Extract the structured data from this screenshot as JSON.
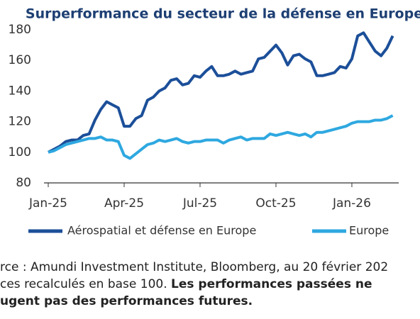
{
  "chart_data": {
    "type": "line",
    "title": "Surperformance du secteur de la défense en Europe",
    "categories": [
      "Jan-25",
      null,
      null,
      null,
      null,
      null,
      null,
      null,
      null,
      null,
      null,
      null,
      null,
      "Apr-25",
      null,
      null,
      null,
      null,
      null,
      null,
      null,
      null,
      null,
      null,
      null,
      null,
      "Jul-25",
      null,
      null,
      null,
      null,
      null,
      null,
      null,
      null,
      null,
      null,
      null,
      null,
      "Oct-25",
      null,
      null,
      null,
      null,
      null,
      null,
      null,
      null,
      null,
      null,
      null,
      null,
      "Jan-26",
      null,
      null,
      null,
      null,
      null,
      null,
      null
    ],
    "series": [
      {
        "name": "Aérospatial et défense en Europe",
        "color": "#1c4f99",
        "values": [
          100,
          102,
          104,
          107,
          108,
          108,
          111,
          112,
          121,
          128,
          133,
          131,
          129,
          117,
          117,
          122,
          124,
          134,
          136,
          140,
          142,
          147,
          148,
          144,
          145,
          150,
          149,
          153,
          156,
          150,
          150,
          151,
          153,
          151,
          152,
          153,
          161,
          162,
          166,
          170,
          165,
          157,
          163,
          164,
          161,
          159,
          150,
          150,
          151,
          152,
          156,
          155,
          161,
          176,
          178,
          172,
          166,
          163,
          168,
          176
        ]
      },
      {
        "name": "Europe",
        "color": "#2ea8e0",
        "values": [
          100,
          101,
          103,
          105,
          106,
          107,
          108,
          109,
          109,
          110,
          108,
          108,
          107,
          98,
          96,
          99,
          102,
          105,
          106,
          108,
          107,
          108,
          109,
          107,
          106,
          107,
          107,
          108,
          108,
          108,
          106,
          108,
          109,
          110,
          108,
          109,
          109,
          109,
          112,
          111,
          112,
          113,
          112,
          111,
          112,
          110,
          113,
          113,
          114,
          115,
          116,
          117,
          119,
          120,
          120,
          120,
          121,
          121,
          122,
          124
        ]
      }
    ],
    "ylim": [
      80,
      180
    ],
    "yticks": [
      80,
      100,
      120,
      140,
      160,
      180
    ],
    "legend": "bottom",
    "notes": [
      "rce : Amundi Investment Institute, Bloomberg, au 20 février 202",
      "ces recalculés en base 100.",
      "Les performances passées ne",
      "ugent pas des performances futures."
    ]
  }
}
